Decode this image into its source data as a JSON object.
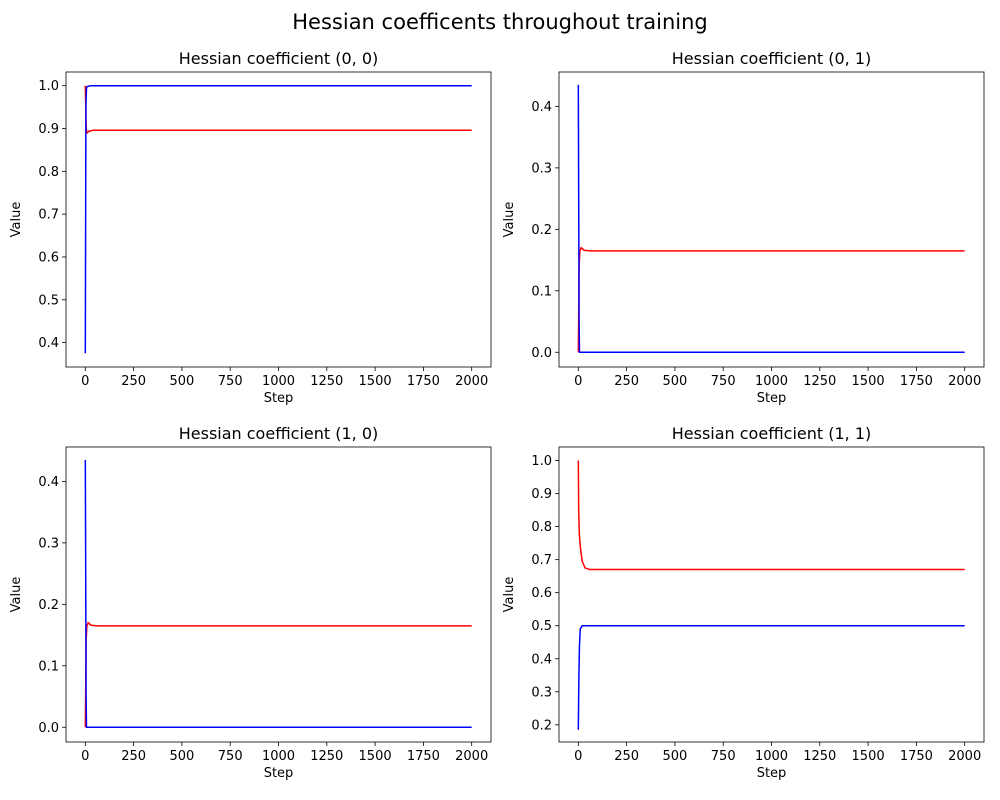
{
  "figure": {
    "title": "Hessian coefficents throughout training"
  },
  "colors": {
    "red_series": "#ff0000",
    "blue_series": "#0000ff"
  },
  "chart_data": [
    {
      "type": "line",
      "title": "Hessian coefficient (0, 0)",
      "xlabel": "Step",
      "ylabel": "Value",
      "xlim": [
        -100,
        2100
      ],
      "ylim": [
        0.343,
        1.032
      ],
      "xticks": [
        0,
        250,
        500,
        750,
        1000,
        1250,
        1500,
        1750,
        2000
      ],
      "yticks": [
        0.4,
        0.5,
        0.6,
        0.7,
        0.8,
        0.9,
        1.0
      ],
      "grid": false,
      "series": [
        {
          "color": "red",
          "points": [
            [
              0,
              1.0
            ],
            [
              2,
              0.96
            ],
            [
              4,
              0.91
            ],
            [
              6,
              0.895
            ],
            [
              10,
              0.89
            ],
            [
              20,
              0.894
            ],
            [
              40,
              0.896
            ],
            [
              2000,
              0.896
            ]
          ]
        },
        {
          "color": "blue",
          "points": [
            [
              0,
              0.375
            ],
            [
              3,
              0.95
            ],
            [
              6,
              0.995
            ],
            [
              10,
              0.998
            ],
            [
              30,
              1.0
            ],
            [
              2000,
              1.0
            ]
          ]
        }
      ]
    },
    {
      "type": "line",
      "title": "Hessian coefficient (0, 1)",
      "xlabel": "Step",
      "ylabel": "Value",
      "xlim": [
        -100,
        2100
      ],
      "ylim": [
        -0.024,
        0.456
      ],
      "xticks": [
        0,
        250,
        500,
        750,
        1000,
        1250,
        1500,
        1750,
        2000
      ],
      "yticks": [
        0.0,
        0.1,
        0.2,
        0.3,
        0.4
      ],
      "grid": false,
      "series": [
        {
          "color": "red",
          "points": [
            [
              0,
              0.0
            ],
            [
              2,
              0.06
            ],
            [
              4,
              0.14
            ],
            [
              8,
              0.165
            ],
            [
              15,
              0.17
            ],
            [
              30,
              0.166
            ],
            [
              60,
              0.165
            ],
            [
              2000,
              0.165
            ]
          ]
        },
        {
          "color": "blue",
          "points": [
            [
              0,
              0.435
            ],
            [
              2,
              0.25
            ],
            [
              4,
              0.05
            ],
            [
              6,
              0.0
            ],
            [
              2000,
              0.0
            ]
          ]
        }
      ]
    },
    {
      "type": "line",
      "title": "Hessian coefficient (1, 0)",
      "xlabel": "Step",
      "ylabel": "Value",
      "xlim": [
        -100,
        2100
      ],
      "ylim": [
        -0.024,
        0.456
      ],
      "xticks": [
        0,
        250,
        500,
        750,
        1000,
        1250,
        1500,
        1750,
        2000
      ],
      "yticks": [
        0.0,
        0.1,
        0.2,
        0.3,
        0.4
      ],
      "grid": false,
      "series": [
        {
          "color": "red",
          "points": [
            [
              0,
              0.0
            ],
            [
              2,
              0.06
            ],
            [
              4,
              0.14
            ],
            [
              8,
              0.165
            ],
            [
              15,
              0.17
            ],
            [
              30,
              0.166
            ],
            [
              60,
              0.165
            ],
            [
              2000,
              0.165
            ]
          ]
        },
        {
          "color": "blue",
          "points": [
            [
              0,
              0.435
            ],
            [
              2,
              0.25
            ],
            [
              4,
              0.05
            ],
            [
              6,
              0.0
            ],
            [
              2000,
              0.0
            ]
          ]
        }
      ]
    },
    {
      "type": "line",
      "title": "Hessian coefficient (1, 1)",
      "xlabel": "Step",
      "ylabel": "Value",
      "xlim": [
        -100,
        2100
      ],
      "ylim": [
        0.148,
        1.041
      ],
      "xticks": [
        0,
        250,
        500,
        750,
        1000,
        1250,
        1500,
        1750,
        2000
      ],
      "yticks": [
        0.2,
        0.3,
        0.4,
        0.5,
        0.6,
        0.7,
        0.8,
        0.9,
        1.0
      ],
      "grid": false,
      "series": [
        {
          "color": "red",
          "points": [
            [
              0,
              1.0
            ],
            [
              2,
              0.85
            ],
            [
              5,
              0.78
            ],
            [
              10,
              0.74
            ],
            [
              20,
              0.695
            ],
            [
              35,
              0.675
            ],
            [
              60,
              0.67
            ],
            [
              2000,
              0.67
            ]
          ]
        },
        {
          "color": "blue",
          "points": [
            [
              0,
              0.185
            ],
            [
              3,
              0.35
            ],
            [
              6,
              0.44
            ],
            [
              10,
              0.49
            ],
            [
              20,
              0.5
            ],
            [
              2000,
              0.5
            ]
          ]
        }
      ]
    }
  ]
}
